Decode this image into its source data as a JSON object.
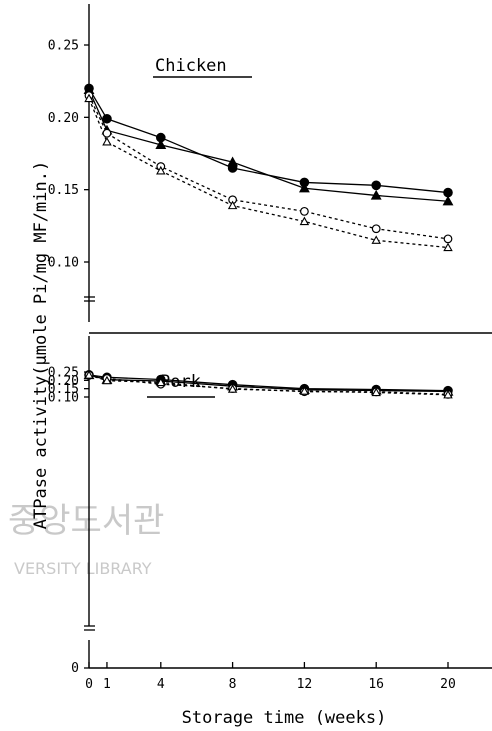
{
  "chart_data": {
    "type": "line",
    "xlabel": "Storage time (weeks)",
    "ylabel": "ATPase activity(μmole Pi/mg MF/min.)",
    "x_ticks": [
      "0",
      "1",
      "4",
      "8",
      "12",
      "16",
      "20"
    ],
    "x": [
      0,
      1,
      4,
      8,
      12,
      16,
      20
    ],
    "xlim": [
      0,
      21
    ],
    "panels": [
      {
        "title": "Chicken",
        "ylim": [
          0.06,
          0.27
        ],
        "y_ticks": [
          "0.10",
          "0.15",
          "0.20",
          "0.25"
        ],
        "series": [
          {
            "marker": "filled-circle",
            "line": "solid",
            "values": [
              0.22,
              0.199,
              0.186,
              0.165,
              0.155,
              0.153,
              0.148
            ]
          },
          {
            "marker": "filled-triangle",
            "line": "solid",
            "values": [
              0.219,
              0.191,
              0.181,
              0.169,
              0.151,
              0.146,
              0.142
            ]
          },
          {
            "marker": "open-circle",
            "line": "dashed",
            "values": [
              0.215,
              0.189,
              0.166,
              0.143,
              0.135,
              0.123,
              0.116
            ]
          },
          {
            "marker": "open-triangle",
            "line": "dashed",
            "values": [
              0.213,
              0.183,
              0.163,
              0.139,
              0.128,
              0.115,
              0.11
            ]
          }
        ]
      },
      {
        "title": "Pork",
        "ylim": [
          0.06,
          0.27
        ],
        "y_ticks": [
          "0.10",
          "0.15",
          "0.20",
          "0.25"
        ],
        "series": [
          {
            "marker": "filled-circle",
            "line": "solid",
            "values": [
              0.233,
              0.218,
              0.205,
              0.174,
              0.15,
              0.145,
              0.138
            ]
          },
          {
            "marker": "filled-triangle",
            "line": "solid",
            "values": [
              0.232,
              0.204,
              0.196,
              0.165,
              0.143,
              0.139,
              0.133
            ]
          },
          {
            "marker": "open-circle",
            "line": "dashed",
            "values": [
              0.231,
              0.211,
              0.177,
              0.151,
              0.132,
              0.131,
              0.116
            ]
          },
          {
            "marker": "open-triangle",
            "line": "dashed",
            "values": [
              0.231,
              0.198,
              0.187,
              0.147,
              0.135,
              0.127,
              0.113
            ]
          }
        ]
      }
    ],
    "bottom_zero_label": "0"
  },
  "watermark": {
    "line1": "중앙도서관",
    "line2": "VERSITY LIBRARY",
    "color": "#c9c9c9"
  }
}
